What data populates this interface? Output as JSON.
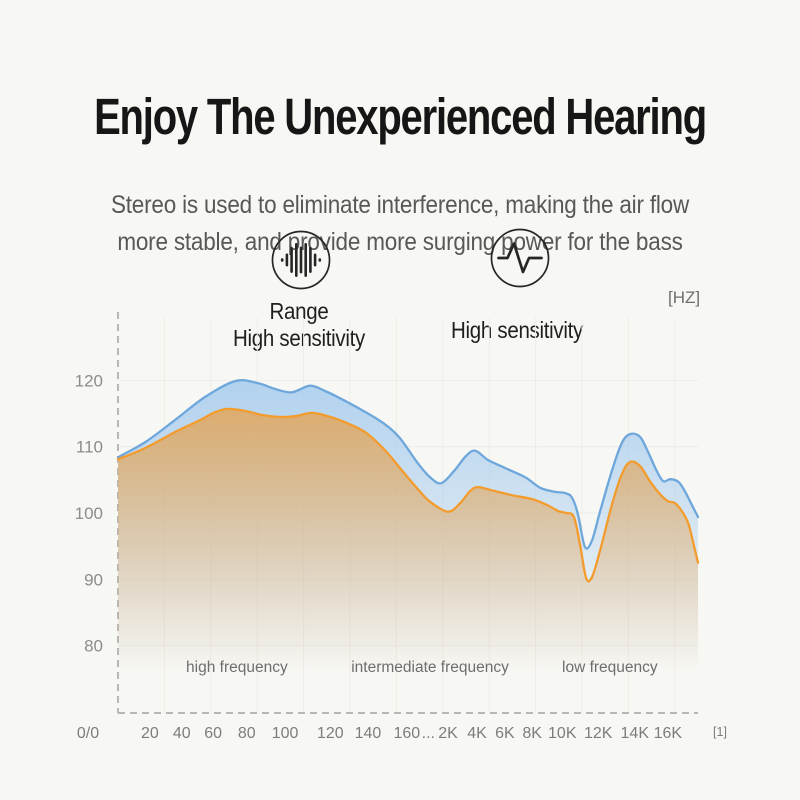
{
  "page": {
    "background": "#f7f7f4"
  },
  "header": {
    "title": "Enjoy The Unexperienced Hearing",
    "subtitle_line1": "Stereo is used to eliminate interference, making the air flow",
    "subtitle_line2": "more stable, and provide more surging power for the bass"
  },
  "features": [
    {
      "icon": "soundwave-icon",
      "label_lines": [
        "Range",
        "High sensitivity"
      ]
    },
    {
      "icon": "pulse-icon",
      "label_lines": [
        "High sensitivity"
      ]
    }
  ],
  "chart_data": {
    "type": "area",
    "unit_label": "[HZ]",
    "origin_label": "0/0",
    "axis_end_label": "[1]",
    "grid": "on",
    "y_ticks": [
      120,
      110,
      100,
      90,
      80
    ],
    "x_ticks": [
      {
        "label": "20",
        "pos": 0.055
      },
      {
        "label": "40",
        "pos": 0.11
      },
      {
        "label": "60",
        "pos": 0.164
      },
      {
        "label": "80",
        "pos": 0.222
      },
      {
        "label": "100",
        "pos": 0.288
      },
      {
        "label": "120",
        "pos": 0.366
      },
      {
        "label": "140",
        "pos": 0.431
      },
      {
        "label": "160",
        "pos": 0.498
      },
      {
        "label": "...",
        "pos": 0.535
      },
      {
        "label": "2K",
        "pos": 0.569
      },
      {
        "label": "4K",
        "pos": 0.619
      },
      {
        "label": "6K",
        "pos": 0.667
      },
      {
        "label": "8K",
        "pos": 0.714
      },
      {
        "label": "10K",
        "pos": 0.766
      },
      {
        "label": "12K",
        "pos": 0.828
      },
      {
        "label": "14K",
        "pos": 0.891
      },
      {
        "label": "16K",
        "pos": 0.948
      }
    ],
    "region_labels": [
      {
        "text": "high frequency",
        "pos": 0.205
      },
      {
        "text": "intermediate frequency",
        "pos": 0.538
      },
      {
        "text": "low frequency",
        "pos": 0.848
      }
    ],
    "series": [
      {
        "name": "range-response",
        "color": "#6ea7db",
        "fill_top": "#a9cdee",
        "points": [
          [
            0.0,
            108.4
          ],
          [
            0.047,
            110.7
          ],
          [
            0.098,
            114.0
          ],
          [
            0.15,
            117.5
          ],
          [
            0.202,
            119.9
          ],
          [
            0.241,
            119.6
          ],
          [
            0.271,
            118.7
          ],
          [
            0.3,
            118.2
          ],
          [
            0.331,
            119.2
          ],
          [
            0.357,
            118.4
          ],
          [
            0.383,
            117.3
          ],
          [
            0.421,
            115.5
          ],
          [
            0.46,
            113.4
          ],
          [
            0.486,
            111.3
          ],
          [
            0.517,
            107.5
          ],
          [
            0.538,
            105.4
          ],
          [
            0.557,
            104.5
          ],
          [
            0.579,
            106.3
          ],
          [
            0.6,
            108.6
          ],
          [
            0.616,
            109.4
          ],
          [
            0.638,
            108.0
          ],
          [
            0.667,
            106.8
          ],
          [
            0.702,
            105.4
          ],
          [
            0.728,
            103.8
          ],
          [
            0.753,
            103.2
          ],
          [
            0.771,
            103.0
          ],
          [
            0.783,
            102.3
          ],
          [
            0.793,
            99.8
          ],
          [
            0.805,
            94.9
          ],
          [
            0.817,
            95.8
          ],
          [
            0.831,
            100.2
          ],
          [
            0.852,
            106.5
          ],
          [
            0.869,
            110.6
          ],
          [
            0.883,
            111.9
          ],
          [
            0.9,
            111.5
          ],
          [
            0.914,
            109.2
          ],
          [
            0.928,
            106.5
          ],
          [
            0.94,
            104.8
          ],
          [
            0.952,
            105.1
          ],
          [
            0.966,
            104.7
          ],
          [
            0.976,
            103.5
          ],
          [
            0.986,
            101.8
          ],
          [
            1.0,
            99.4
          ]
        ]
      },
      {
        "name": "sensitivity-response",
        "color": "#f39c2d",
        "fill_top": "#e0a964",
        "points": [
          [
            0.0,
            108.1
          ],
          [
            0.047,
            109.8
          ],
          [
            0.098,
            112.2
          ],
          [
            0.141,
            114.0
          ],
          [
            0.167,
            115.2
          ],
          [
            0.19,
            115.7
          ],
          [
            0.219,
            115.4
          ],
          [
            0.248,
            114.8
          ],
          [
            0.276,
            114.5
          ],
          [
            0.305,
            114.6
          ],
          [
            0.334,
            115.1
          ],
          [
            0.362,
            114.6
          ],
          [
            0.391,
            113.7
          ],
          [
            0.426,
            112.2
          ],
          [
            0.46,
            109.5
          ],
          [
            0.486,
            106.8
          ],
          [
            0.512,
            104.1
          ],
          [
            0.538,
            101.7
          ],
          [
            0.569,
            100.2
          ],
          [
            0.59,
            101.5
          ],
          [
            0.607,
            103.3
          ],
          [
            0.621,
            103.9
          ],
          [
            0.65,
            103.3
          ],
          [
            0.684,
            102.6
          ],
          [
            0.714,
            102.1
          ],
          [
            0.74,
            101.2
          ],
          [
            0.759,
            100.3
          ],
          [
            0.772,
            100.0
          ],
          [
            0.786,
            99.4
          ],
          [
            0.797,
            95.0
          ],
          [
            0.807,
            90.2
          ],
          [
            0.817,
            90.3
          ],
          [
            0.831,
            94.3
          ],
          [
            0.852,
            101.4
          ],
          [
            0.869,
            105.9
          ],
          [
            0.883,
            107.7
          ],
          [
            0.9,
            107.1
          ],
          [
            0.917,
            104.8
          ],
          [
            0.934,
            102.9
          ],
          [
            0.948,
            101.8
          ],
          [
            0.96,
            101.5
          ],
          [
            0.972,
            100.3
          ],
          [
            0.983,
            98.5
          ],
          [
            0.991,
            95.8
          ],
          [
            1.0,
            92.5
          ]
        ]
      }
    ]
  }
}
